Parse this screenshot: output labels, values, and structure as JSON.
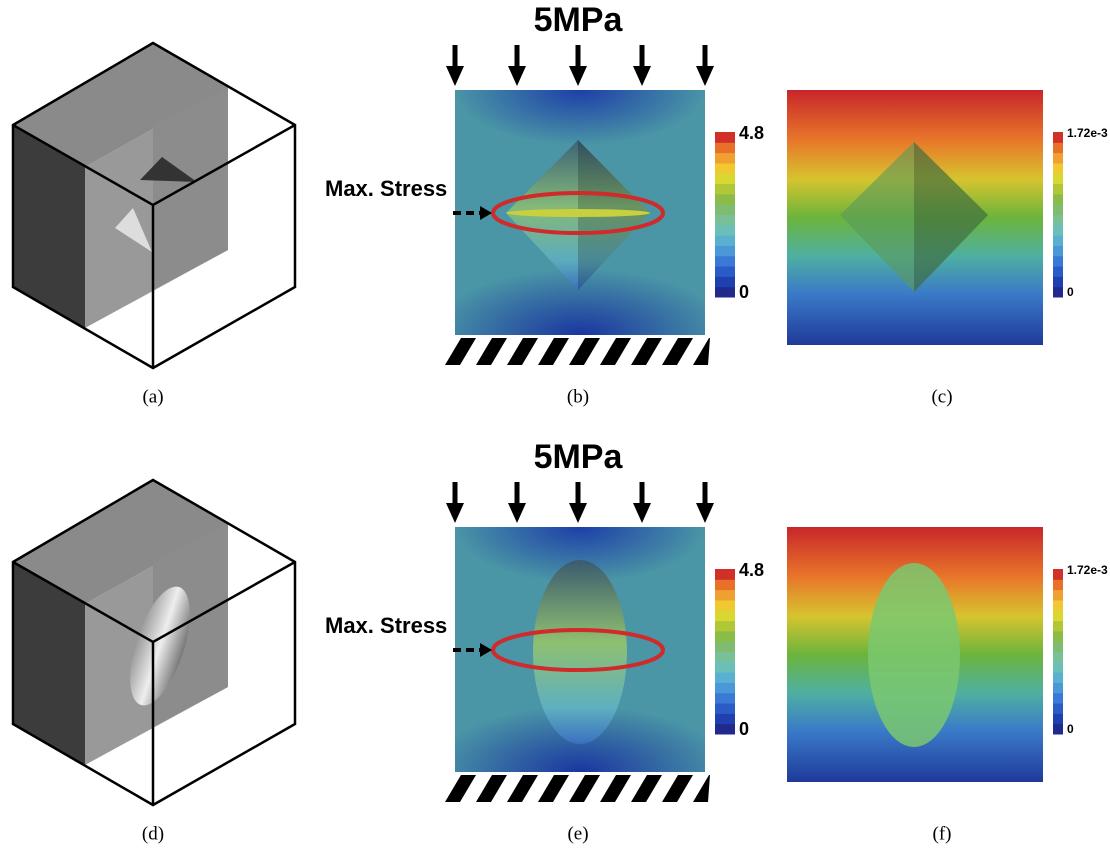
{
  "rows": [
    {
      "panels": [
        {
          "label": "(a)"
        },
        {
          "label": "(b)",
          "load": "5MPa",
          "annotation": "Max. Stress",
          "colorbar": {
            "max": "4.8",
            "min": "0"
          }
        },
        {
          "label": "(c)",
          "colorbar": {
            "max": "1.72e-3",
            "min": "0"
          }
        }
      ]
    },
    {
      "panels": [
        {
          "label": "(d)"
        },
        {
          "label": "(e)",
          "load": "5MPa",
          "annotation": "Max. Stress",
          "colorbar": {
            "max": "4.8",
            "min": "0"
          }
        },
        {
          "label": "(f)",
          "colorbar": {
            "max": "1.72e-3",
            "min": "0"
          }
        }
      ]
    }
  ]
}
